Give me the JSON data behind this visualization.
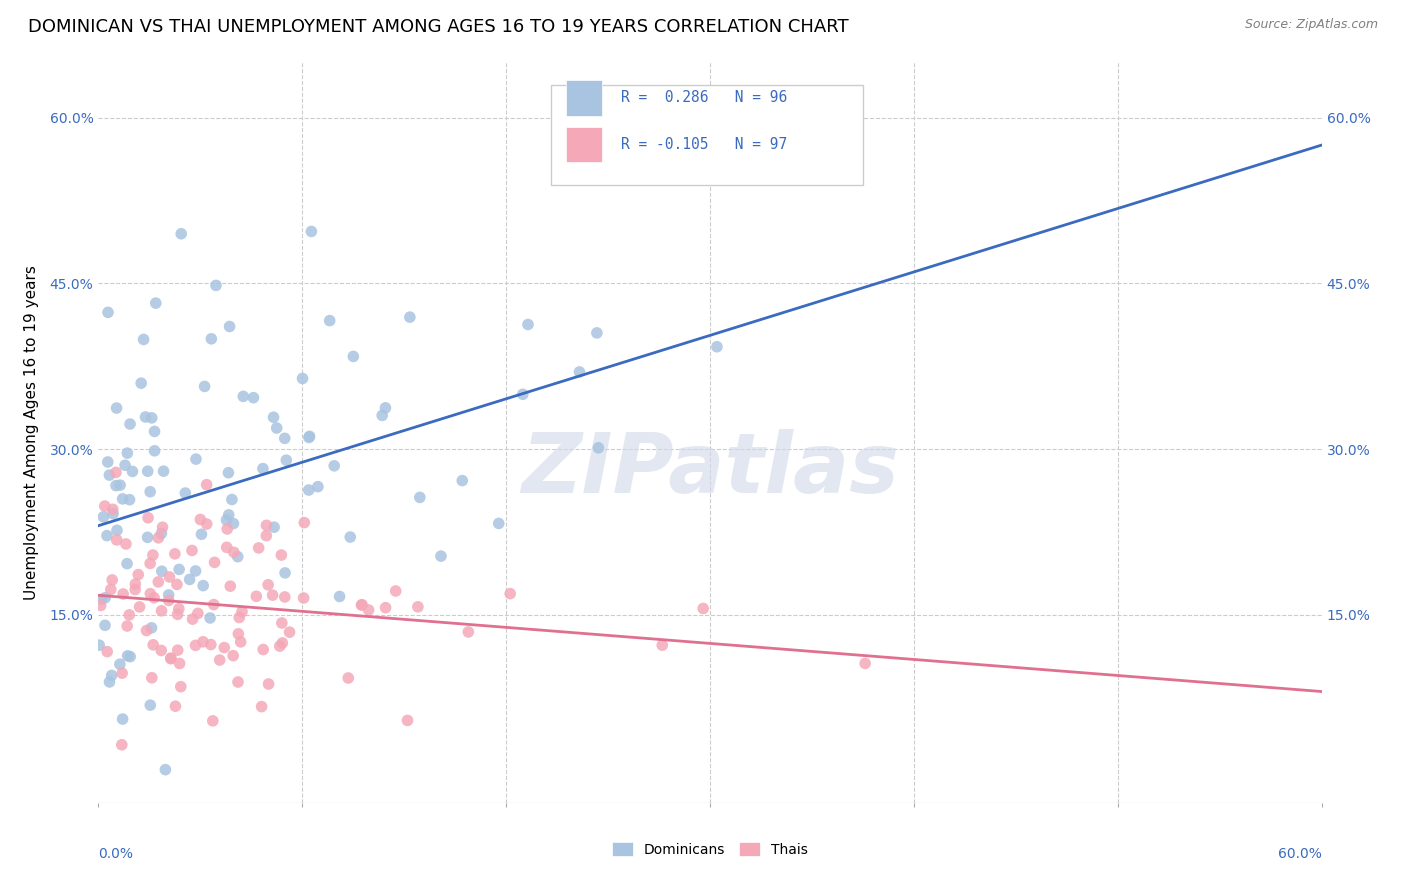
{
  "title": "DOMINICAN VS THAI UNEMPLOYMENT AMONG AGES 16 TO 19 YEARS CORRELATION CHART",
  "source": "Source: ZipAtlas.com",
  "ylabel": "Unemployment Among Ages 16 to 19 years",
  "xlim": [
    0,
    0.6
  ],
  "ylim": [
    -0.02,
    0.65
  ],
  "yticks": [
    0.15,
    0.3,
    0.45,
    0.6
  ],
  "ytick_labels": [
    "15.0%",
    "30.0%",
    "45.0%",
    "60.0%"
  ],
  "dominican_R": 0.286,
  "dominican_N": 96,
  "thai_R": -0.105,
  "thai_N": 97,
  "dominican_color": "#a8c4e0",
  "dominican_line_color": "#3a6bbf",
  "thai_color": "#f4a8b8",
  "thai_line_color": "#e07090",
  "background_color": "#ffffff",
  "watermark": "ZIPatlas",
  "title_fontsize": 13,
  "axis_label_fontsize": 11,
  "tick_fontsize": 10,
  "dominican_seed": 42,
  "thai_seed": 123
}
